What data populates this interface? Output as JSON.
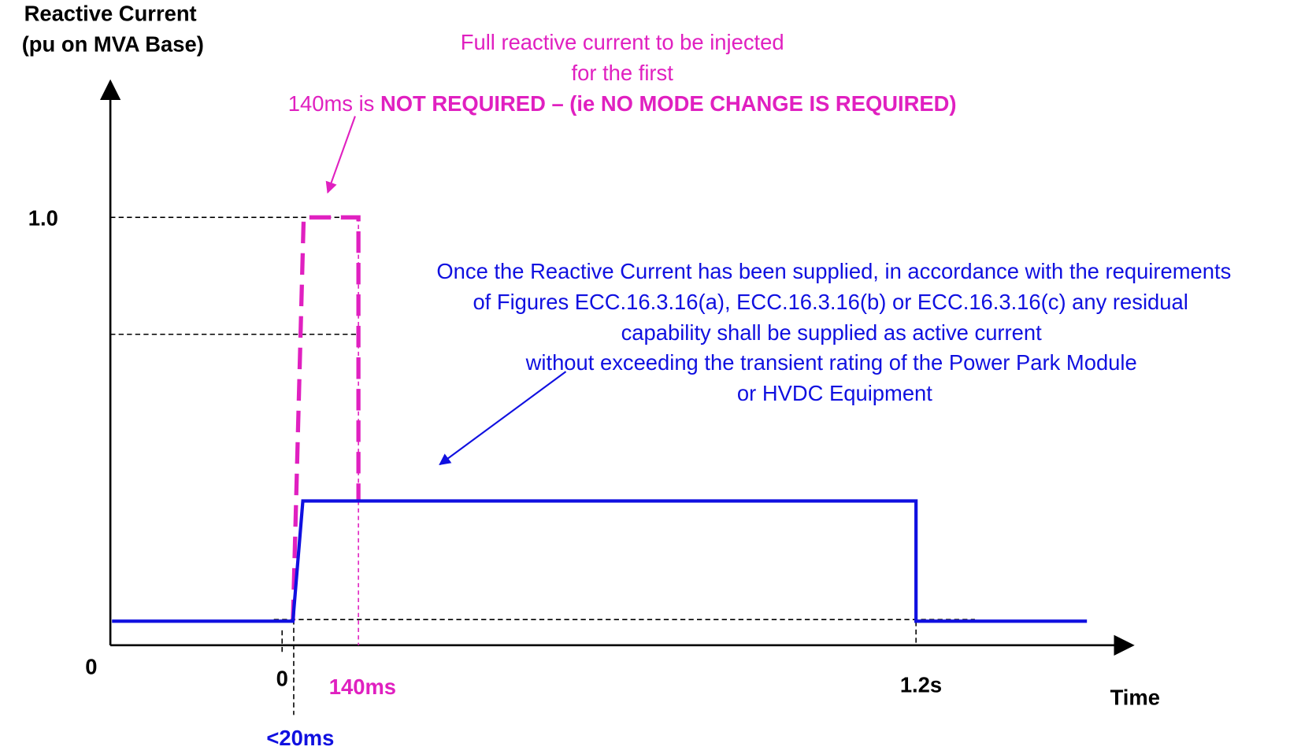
{
  "axes": {
    "y_label": [
      "Reactive Current",
      "(pu on MVA Base)"
    ],
    "y_tick": "1.0",
    "origin": "0",
    "x_ticks": [
      "0",
      "140ms",
      "1.2s"
    ],
    "x_label": "Time",
    "rise_time": "<20ms"
  },
  "pink_note": {
    "lines": [
      "Full reactive current to be injected",
      "for the first"
    ],
    "last_plain": "140ms is ",
    "last_bold": "NOT REQUIRED – (ie NO MODE CHANGE IS REQUIRED)"
  },
  "blue_note": {
    "lines": [
      "Once the Reactive Current has been supplied, in accordance with the requirements",
      "of Figures ECC.16.3.16(a), ECC.16.3.16(b) or ECC.16.3.16(c) any residual",
      "capability shall be supplied as active current",
      "without exceeding the transient rating of the Power Park Module",
      "or HVDC Equipment"
    ]
  }
}
